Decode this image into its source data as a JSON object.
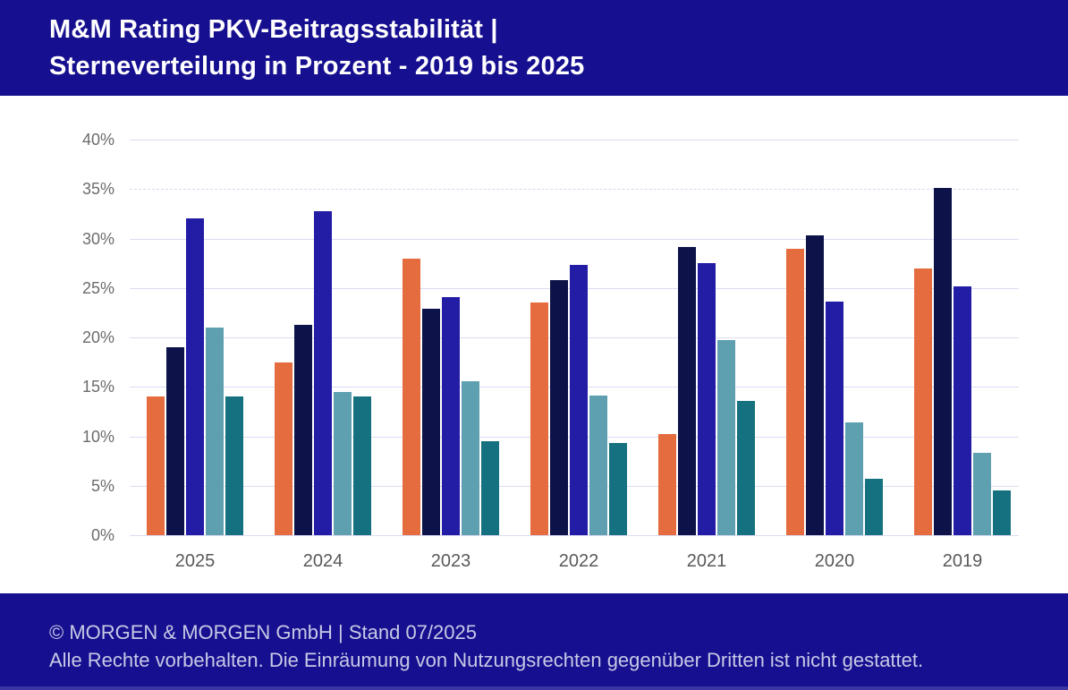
{
  "header": {
    "title_line1": "M&M Rating PKV-Beitragsstabilität |",
    "title_line2": "Sterneverteilung in Prozent - 2019 bis 2025",
    "bg_color": "#160F8F",
    "text_color": "#FFFFFF"
  },
  "chart_data": {
    "type": "bar",
    "title": "M&M Rating PKV-Beitragsstabilität | Sterneverteilung in Prozent - 2019 bis 2025",
    "categories": [
      "2025",
      "2024",
      "2023",
      "2022",
      "2021",
      "2020",
      "2019"
    ],
    "series": [
      {
        "name": "orange",
        "color": "#E56C3F",
        "values": [
          14.0,
          17.5,
          28.0,
          23.5,
          10.2,
          29.0,
          27.0
        ]
      },
      {
        "name": "dark-navy",
        "color": "#0D1248",
        "values": [
          19.0,
          21.3,
          22.9,
          25.8,
          29.1,
          30.3,
          35.1
        ]
      },
      {
        "name": "indigo",
        "color": "#231CA5",
        "values": [
          32.0,
          32.8,
          24.1,
          27.3,
          27.5,
          23.6,
          25.2
        ]
      },
      {
        "name": "light-teal",
        "color": "#5EA0B0",
        "values": [
          21.0,
          14.5,
          15.6,
          14.1,
          19.7,
          11.4,
          8.3
        ]
      },
      {
        "name": "dark-teal",
        "color": "#15707F",
        "values": [
          14.0,
          14.0,
          9.5,
          9.3,
          13.6,
          5.7,
          4.5
        ]
      }
    ],
    "xlabel": "",
    "ylabel": "",
    "ylim": [
      0,
      40
    ],
    "y_ticks": [
      0,
      5,
      10,
      15,
      20,
      25,
      30,
      35,
      40
    ],
    "y_tick_suffix": "%",
    "dashed_gridline_at": 35,
    "grid": "horizontal",
    "gridline_color": "#DCDCF4",
    "legend": "none",
    "axis_label_color": "#6B6B6B",
    "category_label_color": "#58595B"
  },
  "footer": {
    "line1": "© MORGEN & MORGEN GmbH | Stand 07/2025",
    "line2": "Alle Rechte vorbehalten. Die Einräumung von Nutzungsrechten gegenüber Dritten ist nicht gestattet."
  }
}
